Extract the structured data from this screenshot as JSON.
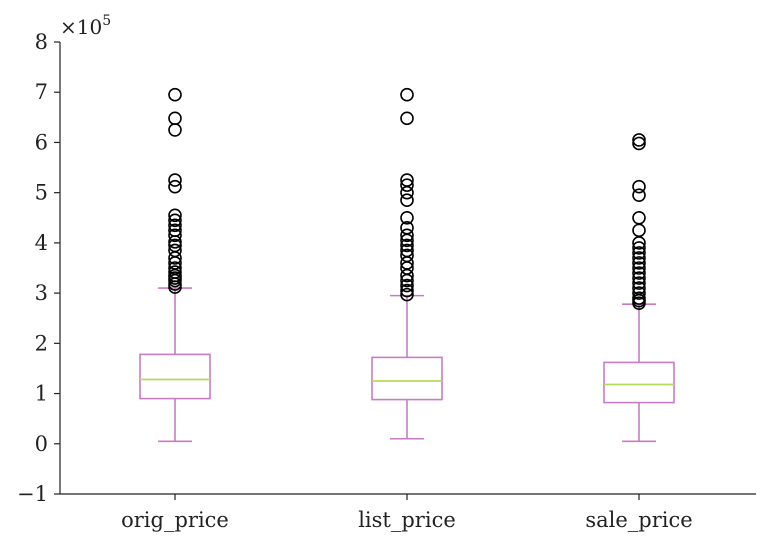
{
  "chart_data": {
    "type": "box",
    "title": "",
    "xlabel": "",
    "ylabel": "",
    "y_scale_label": "×10",
    "y_scale_exponent": "5",
    "ylim": [
      -1,
      8
    ],
    "yticks": [
      -1,
      0,
      1,
      2,
      3,
      4,
      5,
      6,
      7,
      8
    ],
    "ytick_labels": [
      "−1",
      "0",
      "1",
      "2",
      "3",
      "4",
      "5",
      "6",
      "7",
      "8"
    ],
    "grid": false,
    "categories": [
      "orig_price",
      "list_price",
      "sale_price"
    ],
    "box_color": "#c77cc4",
    "median_color": "#b5db5a",
    "outlier_color": "#000000",
    "series": [
      {
        "category": "orig_price",
        "whisker_low": 0.05,
        "q1": 0.9,
        "median": 1.28,
        "q3": 1.78,
        "whisker_high": 3.1,
        "outliers": [
          3.12,
          3.18,
          3.25,
          3.3,
          3.35,
          3.42,
          3.5,
          3.6,
          3.7,
          3.85,
          3.95,
          4.02,
          4.15,
          4.25,
          4.35,
          4.45,
          4.55,
          5.12,
          5.25,
          6.25,
          6.48,
          6.95
        ]
      },
      {
        "category": "list_price",
        "whisker_low": 0.1,
        "q1": 0.88,
        "median": 1.25,
        "q3": 1.72,
        "whisker_high": 2.95,
        "outliers": [
          2.97,
          3.05,
          3.15,
          3.25,
          3.35,
          3.5,
          3.6,
          3.75,
          3.85,
          3.95,
          4.05,
          4.15,
          4.3,
          4.5,
          4.85,
          5.0,
          5.15,
          5.25,
          6.48,
          6.95
        ]
      },
      {
        "category": "sale_price",
        "whisker_low": 0.05,
        "q1": 0.82,
        "median": 1.18,
        "q3": 1.62,
        "whisker_high": 2.78,
        "outliers": [
          2.8,
          2.85,
          2.9,
          3.0,
          3.1,
          3.2,
          3.3,
          3.4,
          3.5,
          3.6,
          3.7,
          3.8,
          3.9,
          4.0,
          4.25,
          4.5,
          4.95,
          5.12,
          5.98,
          6.05
        ]
      }
    ]
  }
}
